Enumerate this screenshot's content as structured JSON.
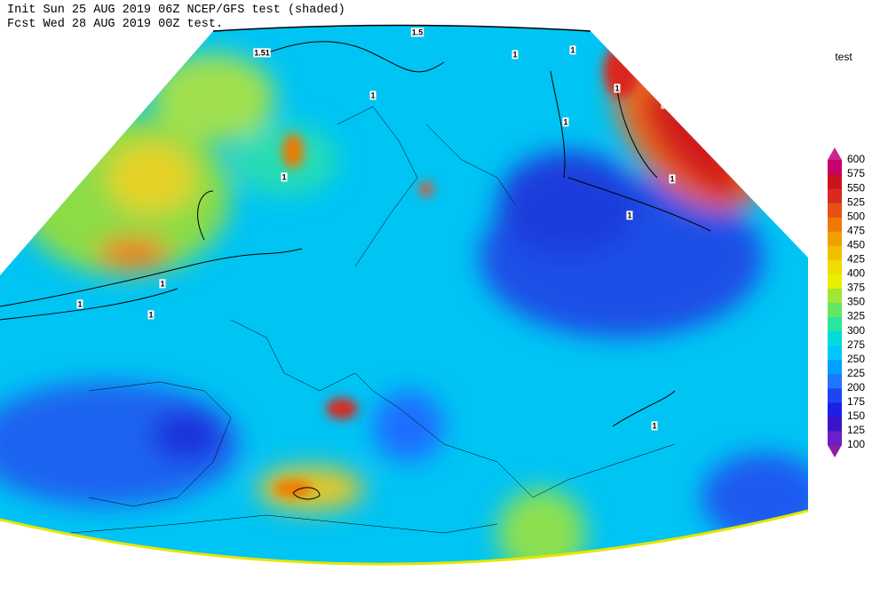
{
  "header": {
    "line1": "Init  Sun 25 AUG 2019 06Z  NCEP/GFS test (shaded)",
    "line2": "Fcst Wed 28 AUG 2019 00Z  test."
  },
  "legend": {
    "title": "test",
    "levels": [
      100,
      125,
      150,
      175,
      200,
      225,
      250,
      275,
      300,
      325,
      350,
      375,
      400,
      425,
      450,
      475,
      500,
      525,
      550,
      575,
      600
    ],
    "colors": [
      "#8c1ea0",
      "#6e1ec8",
      "#3c14c8",
      "#1e1ee6",
      "#1e46f0",
      "#1e78ff",
      "#00a0ff",
      "#00c8ff",
      "#00dcdc",
      "#28e6a0",
      "#64e664",
      "#a0e632",
      "#e6f000",
      "#f0dc00",
      "#f0c000",
      "#f0a000",
      "#f07800",
      "#e65014",
      "#dc281e",
      "#c8141e",
      "#c8006e",
      "#c8288c"
    ]
  },
  "contour_labels": [
    "1.5",
    "1.51",
    "1",
    "1",
    "1",
    "1",
    "1",
    "1",
    "1",
    "1",
    "1",
    "1",
    "1",
    "1",
    "1",
    "1.5"
  ]
}
